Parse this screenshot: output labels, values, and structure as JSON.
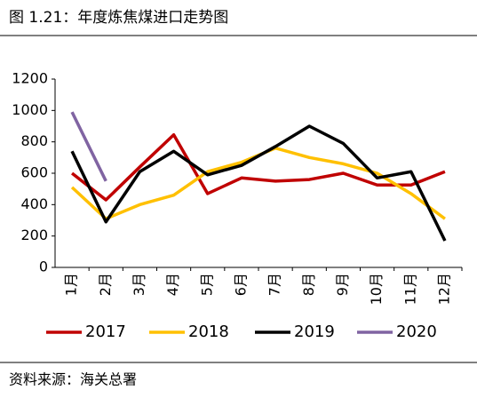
{
  "chart_data": {
    "type": "line",
    "title": "图 1.21：年度炼焦煤进口走势图",
    "source": "资料来源：海关总署",
    "categories": [
      "1月",
      "2月",
      "3月",
      "4月",
      "5月",
      "6月",
      "7月",
      "8月",
      "9月",
      "10月",
      "11月",
      "12月"
    ],
    "series": [
      {
        "name": "2017",
        "color": "#c00000",
        "values": [
          600,
          430,
          640,
          845,
          470,
          570,
          550,
          560,
          600,
          525,
          525,
          610
        ]
      },
      {
        "name": "2018",
        "color": "#ffc000",
        "values": [
          510,
          310,
          400,
          460,
          610,
          670,
          760,
          700,
          660,
          600,
          470,
          310
        ]
      },
      {
        "name": "2019",
        "color": "#000000",
        "values": [
          740,
          290,
          610,
          740,
          590,
          650,
          770,
          900,
          790,
          570,
          610,
          170
        ]
      },
      {
        "name": "2020",
        "color": "#8064a2",
        "values": [
          990,
          550,
          null,
          null,
          null,
          null,
          null,
          null,
          null,
          null,
          null,
          null
        ]
      }
    ],
    "ylim": [
      0,
      1200
    ],
    "yticks": [
      0,
      200,
      400,
      600,
      800,
      1000,
      1200
    ],
    "grid": false
  }
}
